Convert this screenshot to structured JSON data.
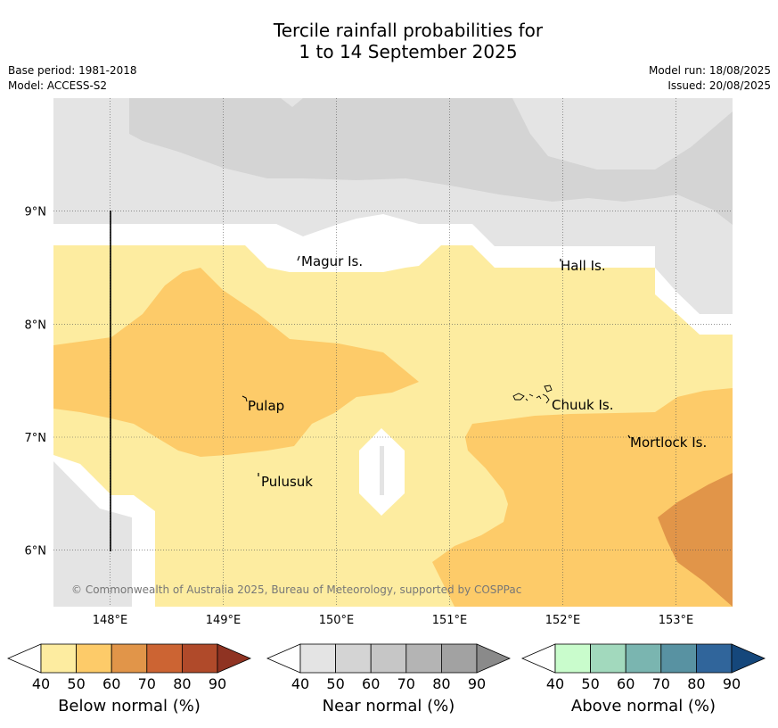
{
  "header": {
    "title_line1": "Tercile rainfall probabilities for",
    "title_line2": "1 to 14 September 2025",
    "base_period": "Base period: 1981-2018",
    "model": "Model: ACCESS-S2",
    "model_run": "Model run: 18/08/2025",
    "issued": "Issued: 20/08/2025"
  },
  "map": {
    "lon_ticks": [
      "148°E",
      "149°E",
      "150°E",
      "151°E",
      "152°E",
      "153°E"
    ],
    "lat_ticks": [
      "9°N",
      "8°N",
      "7°N",
      "6°N"
    ],
    "lon_range": [
      147.5,
      153.5
    ],
    "lat_range": [
      5.5,
      10.0
    ],
    "places": [
      {
        "name": "Magur Is."
      },
      {
        "name": "Hall Is."
      },
      {
        "name": "Pulap"
      },
      {
        "name": "Chuuk Is."
      },
      {
        "name": "Mortlock Is."
      },
      {
        "name": "Pulusuk"
      }
    ],
    "copyright": "© Commonwealth of Australia 2025, Bureau of Meteorology, supported by COSPPac"
  },
  "colorbars": [
    {
      "label": "Below normal (%)",
      "ticks": [
        "40",
        "50",
        "60",
        "70",
        "80",
        "90"
      ],
      "colors": [
        "#ffffff",
        "#fdeca0",
        "#fdcb69",
        "#e19549",
        "#cc6433",
        "#b04a2a",
        "#8f3322"
      ]
    },
    {
      "label": "Near normal (%)",
      "ticks": [
        "40",
        "50",
        "60",
        "70",
        "80",
        "90"
      ],
      "colors": [
        "#ffffff",
        "#e4e4e4",
        "#d4d4d4",
        "#c6c6c6",
        "#b4b4b4",
        "#a2a2a2",
        "#8a8a8a"
      ]
    },
    {
      "label": "Above normal (%)",
      "ticks": [
        "40",
        "50",
        "60",
        "70",
        "80",
        "90"
      ],
      "colors": [
        "#ffffff",
        "#c9fccc",
        "#a2d9bd",
        "#7ab5b0",
        "#5892a2",
        "#30659b",
        "#15477b"
      ]
    }
  ]
}
